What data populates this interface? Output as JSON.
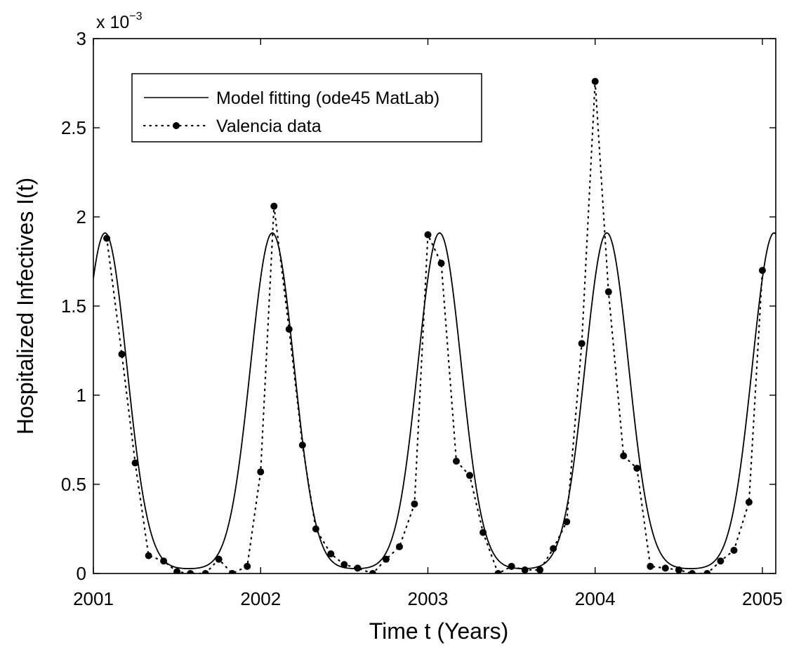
{
  "chart_data": {
    "type": "line",
    "xlabel": "Time t (Years)",
    "ylabel": "Hospitalized Infectives I(t)",
    "xlim": [
      2001,
      2005.08
    ],
    "ylim": [
      0,
      3
    ],
    "y_scale_base": "x 10",
    "y_scale_exponent": "−3",
    "x_ticks": [
      {
        "value": 2001,
        "label": "2001"
      },
      {
        "value": 2002,
        "label": "2002"
      },
      {
        "value": 2003,
        "label": "2003"
      },
      {
        "value": 2004,
        "label": "2004"
      },
      {
        "value": 2005,
        "label": "2005"
      }
    ],
    "y_ticks": [
      {
        "value": 0,
        "label": "0"
      },
      {
        "value": 0.5,
        "label": "0.5"
      },
      {
        "value": 1,
        "label": "1"
      },
      {
        "value": 1.5,
        "label": "1.5"
      },
      {
        "value": 2,
        "label": "2"
      },
      {
        "value": 2.5,
        "label": "2.5"
      },
      {
        "value": 3,
        "label": "3"
      }
    ],
    "grid": false,
    "legend_position": "top-left",
    "series": [
      {
        "name": "Model fitting (ode45 MatLab)",
        "style": "solid",
        "color": "#000000",
        "period": 1,
        "peak_x": 2001.07,
        "peak_y": 1.91,
        "baseline_y": 0.025,
        "width_sigma": 0.13
      },
      {
        "name": "Valencia data",
        "style": "dotted-with-markers",
        "color": "#000000",
        "points": [
          [
            2001.08,
            1.88
          ],
          [
            2001.17,
            1.23
          ],
          [
            2001.25,
            0.62
          ],
          [
            2001.33,
            0.1
          ],
          [
            2001.42,
            0.07
          ],
          [
            2001.5,
            0.01
          ],
          [
            2001.58,
            0.0
          ],
          [
            2001.67,
            0.0
          ],
          [
            2001.75,
            0.08
          ],
          [
            2001.83,
            0.0
          ],
          [
            2001.92,
            0.04
          ],
          [
            2002.0,
            0.57
          ],
          [
            2002.08,
            2.06
          ],
          [
            2002.17,
            1.37
          ],
          [
            2002.25,
            0.72
          ],
          [
            2002.33,
            0.25
          ],
          [
            2002.42,
            0.11
          ],
          [
            2002.5,
            0.05
          ],
          [
            2002.58,
            0.03
          ],
          [
            2002.67,
            0.0
          ],
          [
            2002.75,
            0.08
          ],
          [
            2002.83,
            0.15
          ],
          [
            2002.92,
            0.39
          ],
          [
            2003.0,
            1.9
          ],
          [
            2003.08,
            1.74
          ],
          [
            2003.17,
            0.63
          ],
          [
            2003.25,
            0.55
          ],
          [
            2003.33,
            0.23
          ],
          [
            2003.42,
            0.0
          ],
          [
            2003.5,
            0.04
          ],
          [
            2003.58,
            0.02
          ],
          [
            2003.67,
            0.02
          ],
          [
            2003.75,
            0.14
          ],
          [
            2003.83,
            0.29
          ],
          [
            2003.92,
            1.29
          ],
          [
            2004.0,
            2.76
          ],
          [
            2004.08,
            1.58
          ],
          [
            2004.17,
            0.66
          ],
          [
            2004.25,
            0.59
          ],
          [
            2004.33,
            0.04
          ],
          [
            2004.42,
            0.03
          ],
          [
            2004.5,
            0.02
          ],
          [
            2004.58,
            0.0
          ],
          [
            2004.67,
            0.0
          ],
          [
            2004.75,
            0.07
          ],
          [
            2004.83,
            0.13
          ],
          [
            2004.92,
            0.4
          ],
          [
            2005.0,
            1.7
          ]
        ]
      }
    ]
  }
}
